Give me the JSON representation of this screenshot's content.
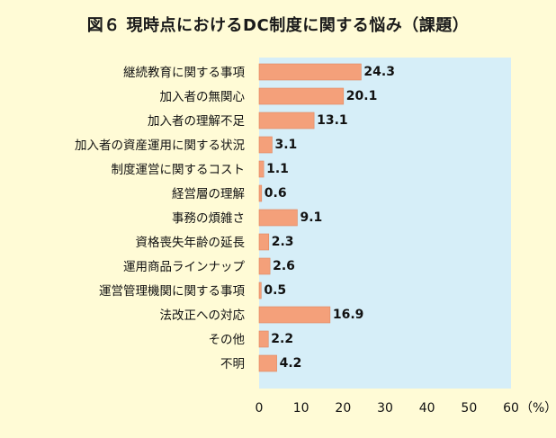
{
  "chart_data": {
    "type": "bar",
    "orientation": "horizontal",
    "title": "図６ 現時点におけるDC制度に関する悩み（課題）",
    "categories": [
      "継続教育に関する事項",
      "加入者の無関心",
      "加入者の理解不足",
      "加入者の資産運用に関する状況",
      "制度運営に関するコスト",
      "経営層の理解",
      "事務の煩雑さ",
      "資格喪失年齢の延長",
      "運用商品ラインナップ",
      "運営管理機関に関する事項",
      "法改正への対応",
      "その他",
      "不明"
    ],
    "values": [
      24.3,
      20.1,
      13.1,
      3.1,
      1.1,
      0.6,
      9.1,
      2.3,
      2.6,
      0.5,
      16.9,
      2.2,
      4.2
    ],
    "value_labels": [
      "24.3",
      "20.1",
      "13.1",
      "3.1",
      "1.1",
      "0.6",
      "9.1",
      "2.3",
      "2.6",
      "0.5",
      "16.9",
      "2.2",
      "4.2"
    ],
    "xlim": [
      0,
      60
    ],
    "x_ticks": [
      0,
      10,
      20,
      30,
      40,
      50,
      60
    ],
    "x_unit": "（%）",
    "grid": false,
    "colors": {
      "bar": "#F4A07A",
      "bar_edge": "#E08860",
      "plot_bg": "#D6EEF8",
      "page_bg": "#FFFBD6"
    }
  }
}
